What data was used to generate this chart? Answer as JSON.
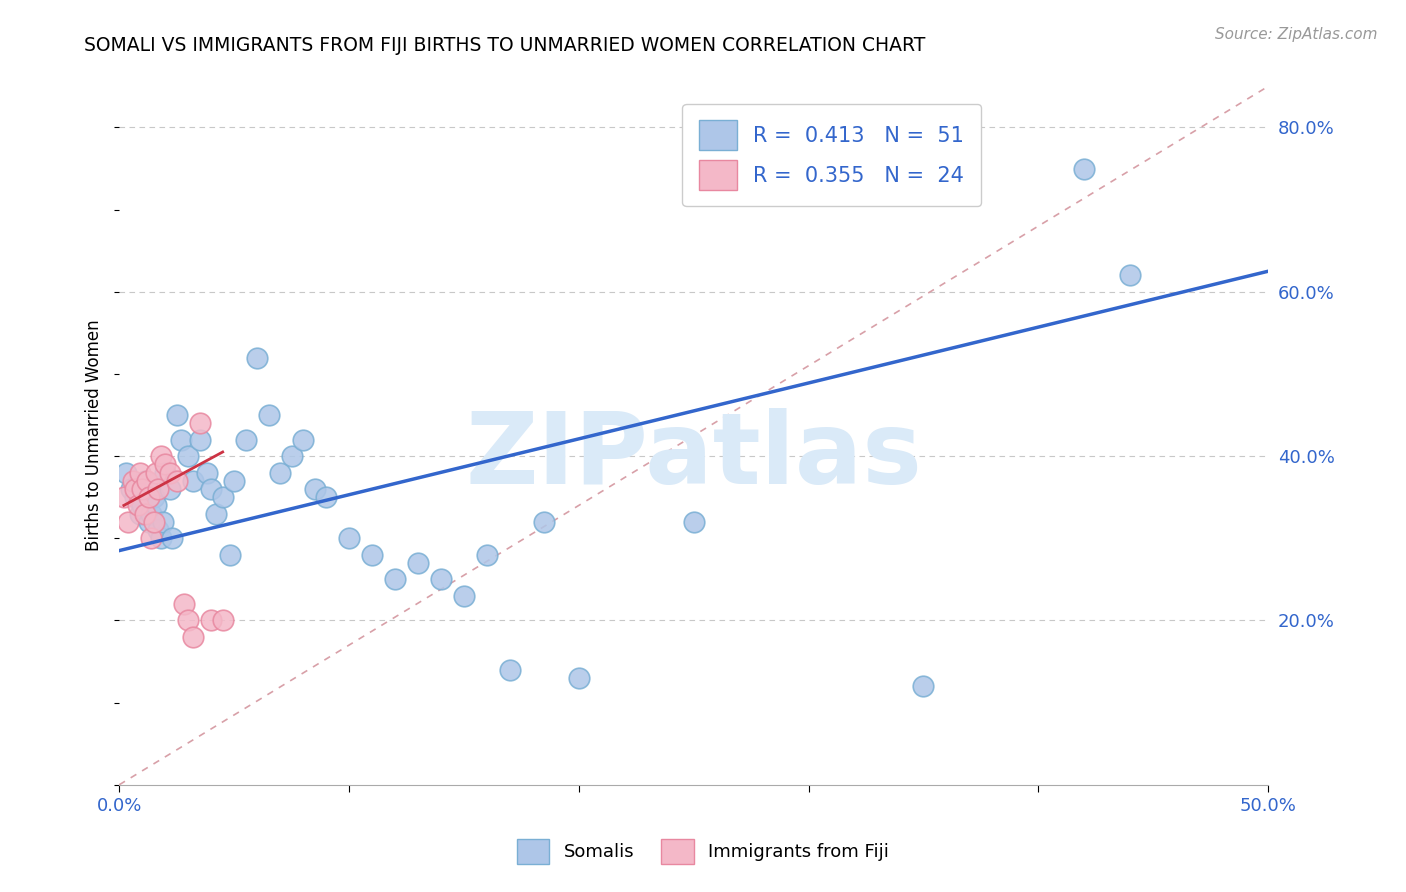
{
  "title": "SOMALI VS IMMIGRANTS FROM FIJI BIRTHS TO UNMARRIED WOMEN CORRELATION CHART",
  "source": "Source: ZipAtlas.com",
  "ylabel": "Births to Unmarried Women",
  "xlim": [
    0.0,
    0.5
  ],
  "ylim": [
    0.0,
    0.85
  ],
  "y_ticks_right": [
    0.2,
    0.4,
    0.6,
    0.8
  ],
  "y_tick_labels_right": [
    "20.0%",
    "40.0%",
    "60.0%",
    "80.0%"
  ],
  "legend_r1": "0.413",
  "legend_n1": "51",
  "legend_r2": "0.355",
  "legend_n2": "24",
  "somali_color": "#aec6e8",
  "fiji_color": "#f4b8c8",
  "somali_edge": "#7aafd4",
  "fiji_edge": "#e888a0",
  "trend_line_color": "#3366cc",
  "fiji_trend_color": "#cc3344",
  "diag_line_color": "#d0b0b8",
  "watermark_color": "#daeaf8",
  "watermark_text": "ZIPatlas",
  "somali_x": [
    0.003,
    0.005,
    0.007,
    0.008,
    0.009,
    0.01,
    0.011,
    0.012,
    0.013,
    0.014,
    0.015,
    0.016,
    0.017,
    0.018,
    0.019,
    0.02,
    0.022,
    0.023,
    0.025,
    0.027,
    0.03,
    0.032,
    0.035,
    0.038,
    0.04,
    0.042,
    0.045,
    0.048,
    0.05,
    0.055,
    0.06,
    0.065,
    0.07,
    0.075,
    0.08,
    0.085,
    0.09,
    0.1,
    0.11,
    0.12,
    0.13,
    0.14,
    0.15,
    0.16,
    0.17,
    0.185,
    0.2,
    0.25,
    0.35,
    0.42,
    0.44
  ],
  "somali_y": [
    0.38,
    0.36,
    0.35,
    0.36,
    0.33,
    0.34,
    0.37,
    0.36,
    0.32,
    0.33,
    0.35,
    0.34,
    0.31,
    0.3,
    0.32,
    0.38,
    0.36,
    0.3,
    0.45,
    0.42,
    0.4,
    0.37,
    0.42,
    0.38,
    0.36,
    0.33,
    0.35,
    0.28,
    0.37,
    0.42,
    0.52,
    0.45,
    0.38,
    0.4,
    0.42,
    0.36,
    0.35,
    0.3,
    0.28,
    0.25,
    0.27,
    0.25,
    0.23,
    0.28,
    0.14,
    0.32,
    0.13,
    0.32,
    0.12,
    0.75,
    0.62
  ],
  "fiji_x": [
    0.002,
    0.004,
    0.006,
    0.007,
    0.008,
    0.009,
    0.01,
    0.011,
    0.012,
    0.013,
    0.014,
    0.015,
    0.016,
    0.017,
    0.018,
    0.02,
    0.022,
    0.025,
    0.028,
    0.03,
    0.032,
    0.035,
    0.04,
    0.045
  ],
  "fiji_y": [
    0.35,
    0.32,
    0.37,
    0.36,
    0.34,
    0.38,
    0.36,
    0.33,
    0.37,
    0.35,
    0.3,
    0.32,
    0.38,
    0.36,
    0.4,
    0.39,
    0.38,
    0.37,
    0.22,
    0.2,
    0.18,
    0.44,
    0.2,
    0.2
  ],
  "somali_trendline": [
    0.0,
    0.5,
    0.285,
    0.625
  ],
  "fiji_trendline_solid": [
    0.002,
    0.045,
    0.34,
    0.405
  ],
  "diag_trendline": [
    0.0,
    0.5,
    0.0,
    0.85
  ]
}
